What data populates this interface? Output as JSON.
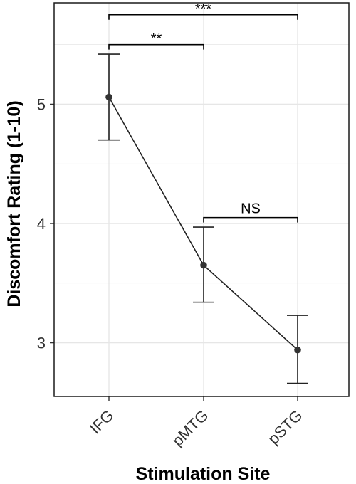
{
  "chart_data": {
    "type": "line",
    "xlabel": "Stimulation Site",
    "ylabel": "Discomfort Rating (1-10)",
    "categories": [
      "IFG",
      "pMTG",
      "pSTG"
    ],
    "yticks": [
      3,
      4,
      5
    ],
    "ylim": [
      2.55,
      5.85
    ],
    "grid": true,
    "series": [
      {
        "values": [
          5.06,
          3.65,
          2.94
        ],
        "error_low": [
          4.7,
          3.34,
          2.66
        ],
        "error_high": [
          5.42,
          3.97,
          3.23
        ]
      }
    ],
    "significance": [
      {
        "from": "IFG",
        "to": "pSTG",
        "y": 5.75,
        "label": "***"
      },
      {
        "from": "IFG",
        "to": "pMTG",
        "y": 5.5,
        "label": "**"
      },
      {
        "from": "pMTG",
        "to": "pSTG",
        "y": 4.05,
        "label": "NS"
      }
    ],
    "colors": {
      "line": "#222222",
      "grid": "#e6e6e6",
      "panel_border": "#1a1a1a"
    }
  }
}
